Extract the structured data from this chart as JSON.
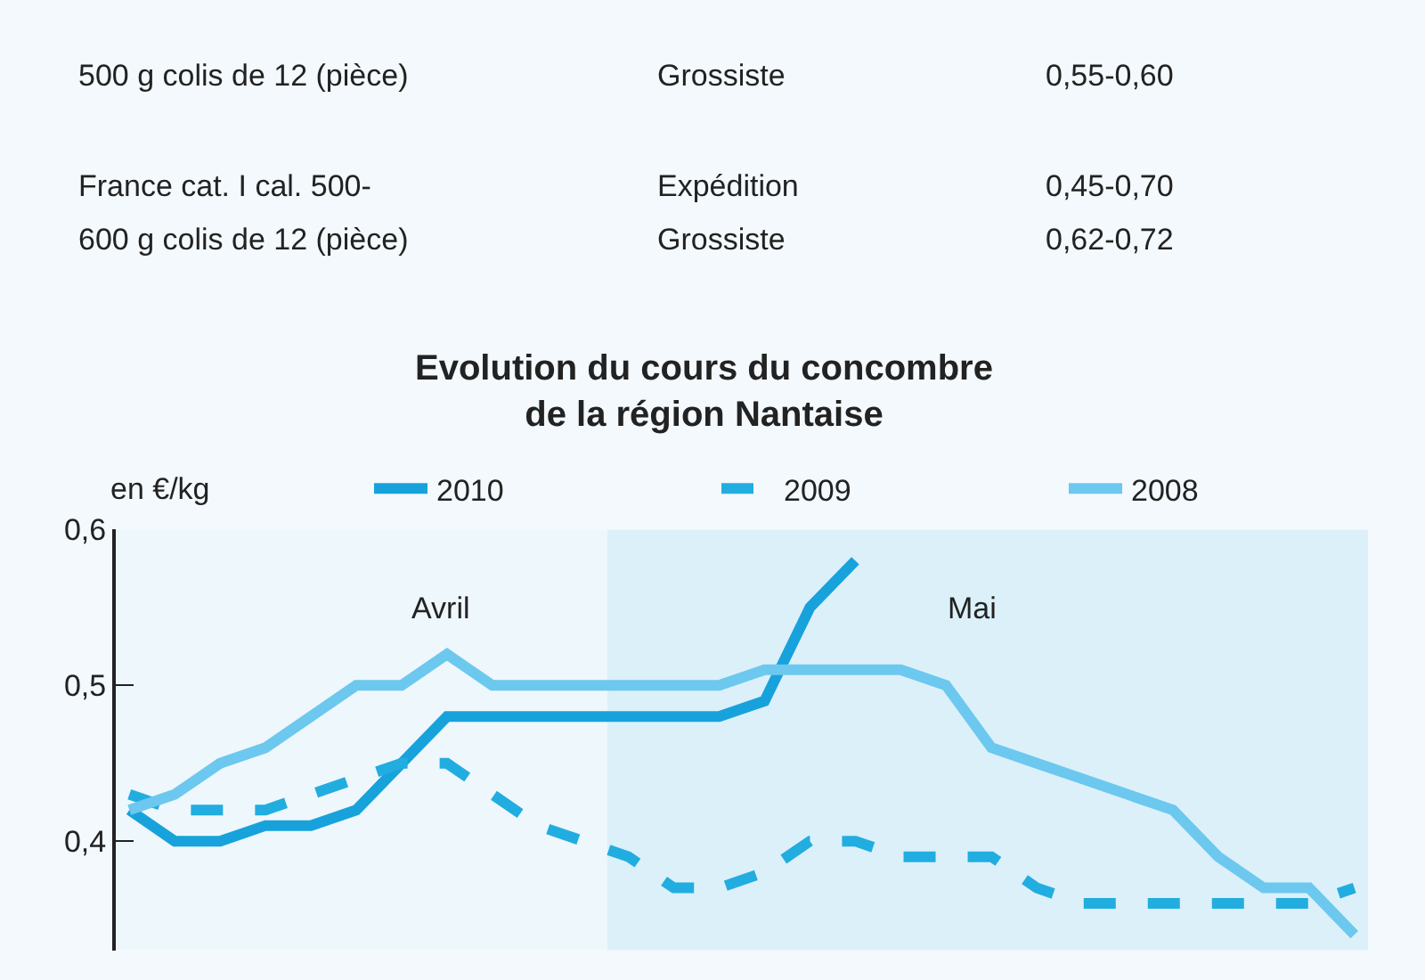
{
  "chart_data": {
    "type": "line",
    "title": "Evolution du cours du concombre\nde la région Nantaise",
    "ylabel": "en €/kg",
    "categories": [
      null,
      null,
      null,
      null,
      null,
      null,
      null,
      null,
      null,
      null,
      null,
      null,
      null,
      null,
      null,
      null,
      null,
      null,
      null,
      null,
      null,
      null,
      null,
      null,
      null,
      null,
      null,
      null
    ],
    "series": [
      {
        "name": "2010",
        "color": "#17a2dc",
        "line_style": "solid",
        "values": [
          0.42,
          0.4,
          0.4,
          0.41,
          0.41,
          0.42,
          0.45,
          0.48,
          0.48,
          0.48,
          0.48,
          0.48,
          0.48,
          0.48,
          0.49,
          0.55,
          0.58,
          null,
          null,
          null,
          null,
          null,
          null,
          null,
          null,
          null,
          null,
          null
        ]
      },
      {
        "name": "2009",
        "color": "#22ade0",
        "line_style": "dashed",
        "values": [
          0.43,
          0.42,
          0.42,
          0.42,
          0.43,
          0.44,
          0.45,
          0.45,
          0.43,
          0.41,
          0.4,
          0.39,
          0.37,
          0.37,
          0.38,
          0.4,
          0.4,
          0.39,
          0.39,
          0.39,
          0.37,
          0.36,
          0.36,
          0.36,
          0.36,
          0.36,
          0.36,
          0.37
        ]
      },
      {
        "name": "2008",
        "color": "#6cc8ee",
        "line_style": "solid",
        "values": [
          0.42,
          0.43,
          0.45,
          0.46,
          0.48,
          0.5,
          0.5,
          0.52,
          0.5,
          0.5,
          0.5,
          0.5,
          0.5,
          0.5,
          0.51,
          0.51,
          0.51,
          0.51,
          0.5,
          0.46,
          0.45,
          0.44,
          0.43,
          0.42,
          0.39,
          0.37,
          0.37,
          0.34
        ]
      }
    ],
    "ylim": [
      0.33,
      0.6
    ],
    "yticks": [
      {
        "value": 0.4,
        "label": "0,4"
      },
      {
        "value": 0.5,
        "label": "0,5"
      },
      {
        "value": 0.6,
        "label": "0,6"
      }
    ],
    "grid": false,
    "legend": "top",
    "marker": "none",
    "tick_labels": "y",
    "annotations": [
      "500 g colis de 12 (pièce)",
      "Grossiste",
      "0,55-0,60",
      "France cat. I cal. 500-",
      "Expédition",
      "0,45-0,70",
      "600 g colis de 12 (pièce)",
      "Grossiste",
      "0,62-0,72",
      "Avril",
      "Mai"
    ]
  }
}
